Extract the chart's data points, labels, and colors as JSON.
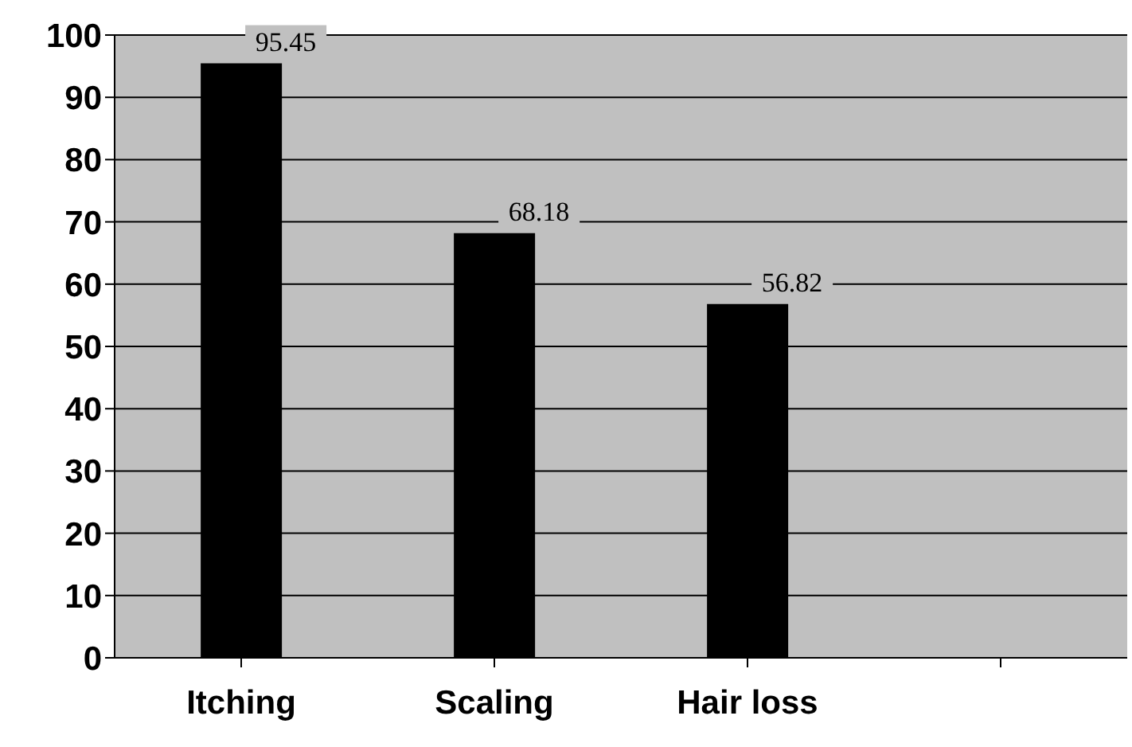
{
  "chart_data": {
    "type": "bar",
    "categories": [
      "Itching",
      "Scaling",
      "Hair loss",
      null
    ],
    "values": [
      95.45,
      68.18,
      56.82,
      null
    ],
    "color": "#000000",
    "ylim": [
      0,
      100
    ],
    "yticks": [
      0,
      10,
      20,
      30,
      40,
      50,
      60,
      70,
      80,
      90,
      100
    ],
    "grid": "y",
    "data_labels": true
  }
}
